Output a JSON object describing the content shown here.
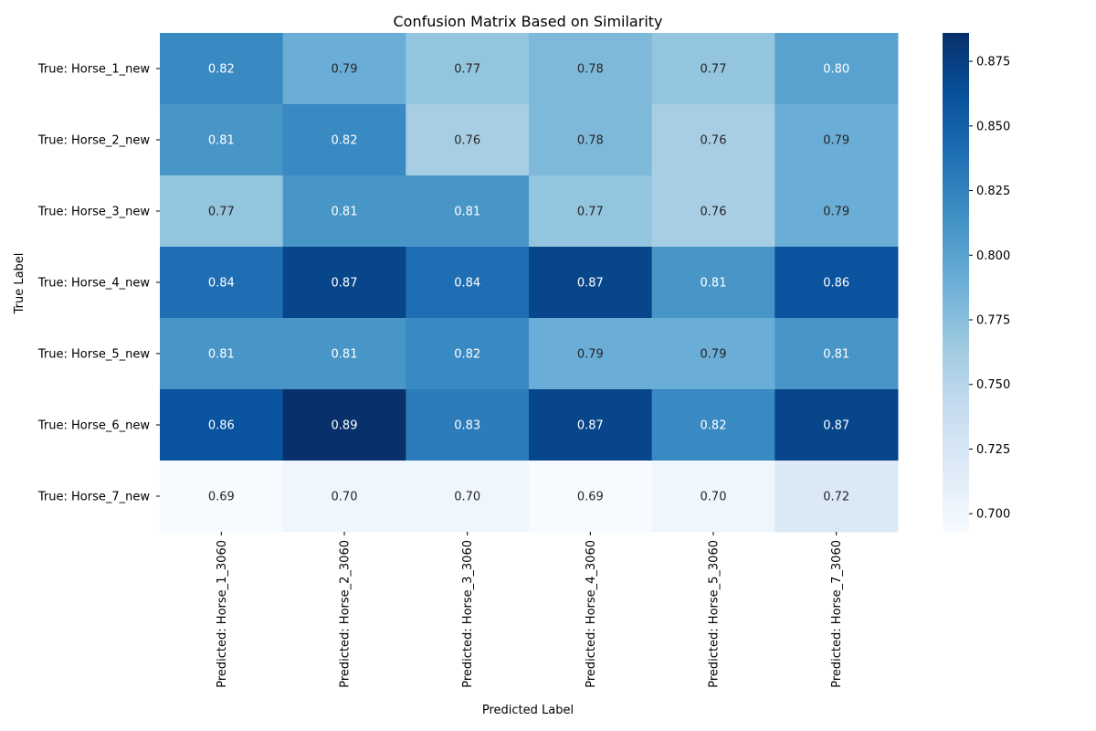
{
  "chart_data": {
    "type": "heatmap",
    "title": "Confusion Matrix Based on Similarity",
    "xlabel": "Predicted Label",
    "ylabel": "True Label",
    "x_categories": [
      "Predicted: Horse_1_3060",
      "Predicted: Horse_2_3060",
      "Predicted: Horse_3_3060",
      "Predicted: Horse_4_3060",
      "Predicted: Horse_5_3060",
      "Predicted: Horse_7_3060"
    ],
    "y_categories": [
      "True: Horse_1_new",
      "True: Horse_2_new",
      "True: Horse_3_new",
      "True: Horse_4_new",
      "True: Horse_5_new",
      "True: Horse_6_new",
      "True: Horse_7_new"
    ],
    "values": [
      [
        0.82,
        0.79,
        0.77,
        0.78,
        0.77,
        0.8
      ],
      [
        0.81,
        0.82,
        0.76,
        0.78,
        0.76,
        0.79
      ],
      [
        0.77,
        0.81,
        0.81,
        0.77,
        0.76,
        0.79
      ],
      [
        0.84,
        0.87,
        0.84,
        0.87,
        0.81,
        0.86
      ],
      [
        0.81,
        0.81,
        0.82,
        0.79,
        0.79,
        0.81
      ],
      [
        0.86,
        0.89,
        0.83,
        0.87,
        0.82,
        0.87
      ],
      [
        0.69,
        0.7,
        0.7,
        0.69,
        0.7,
        0.72
      ]
    ],
    "value_labels": [
      [
        "0.82",
        "0.79",
        "0.77",
        "0.78",
        "0.77",
        "0.80"
      ],
      [
        "0.81",
        "0.82",
        "0.76",
        "0.78",
        "0.76",
        "0.79"
      ],
      [
        "0.77",
        "0.81",
        "0.81",
        "0.77",
        "0.76",
        "0.79"
      ],
      [
        "0.84",
        "0.87",
        "0.84",
        "0.87",
        "0.81",
        "0.86"
      ],
      [
        "0.81",
        "0.81",
        "0.82",
        "0.79",
        "0.79",
        "0.81"
      ],
      [
        "0.86",
        "0.89",
        "0.83",
        "0.87",
        "0.82",
        "0.87"
      ],
      [
        "0.69",
        "0.70",
        "0.70",
        "0.69",
        "0.70",
        "0.72"
      ]
    ],
    "colormap": "Blues",
    "colorbar": {
      "range": [
        0.693,
        0.886
      ],
      "ticks": [
        0.7,
        0.725,
        0.75,
        0.775,
        0.8,
        0.825,
        0.85,
        0.875
      ],
      "tick_labels": [
        "0.700",
        "0.725",
        "0.750",
        "0.775",
        "0.800",
        "0.825",
        "0.850",
        "0.875"
      ]
    },
    "grid": false,
    "legend": "colorbar-right"
  }
}
